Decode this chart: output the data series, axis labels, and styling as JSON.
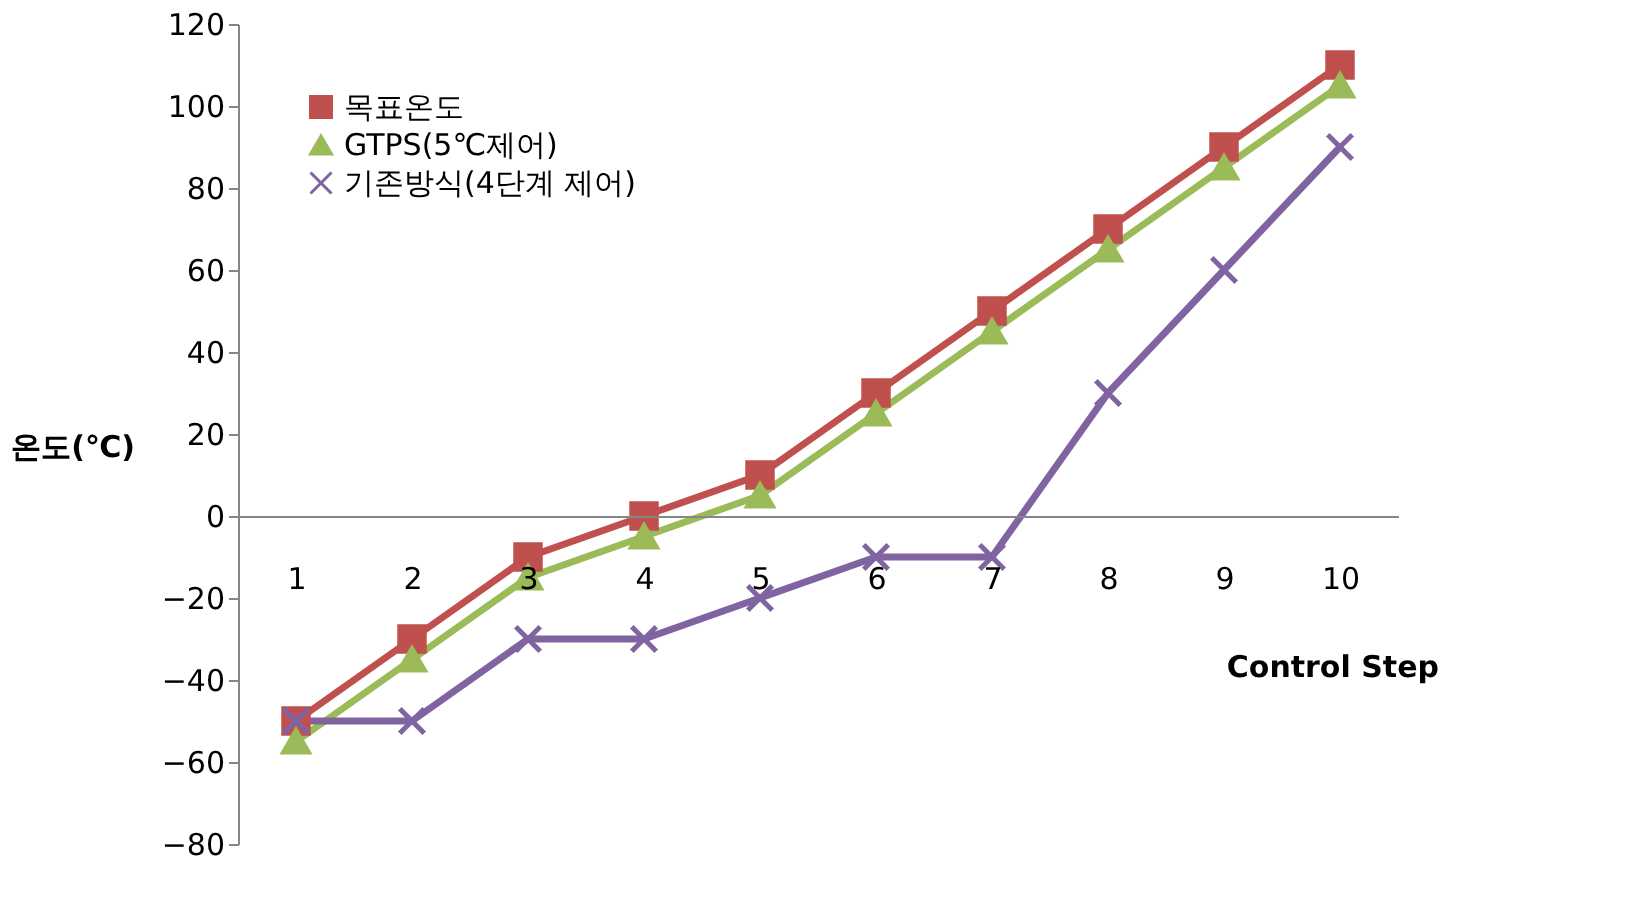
{
  "chart_data": {
    "type": "line",
    "xlabel": "Control Step",
    "ylabel": "온도(℃)",
    "categories": [
      "1",
      "2",
      "3",
      "4",
      "5",
      "6",
      "7",
      "8",
      "9",
      "10"
    ],
    "series": [
      {
        "name": "목표온도",
        "color": "#c0504d",
        "marker": "square",
        "values": [
          -50,
          -30,
          -10,
          0,
          10,
          30,
          50,
          70,
          90,
          110
        ]
      },
      {
        "name": "GTPS(5℃제어)",
        "color": "#9bbb59",
        "marker": "triangle",
        "values": [
          -55,
          -35,
          -15,
          -5,
          5,
          25,
          45,
          65,
          85,
          105
        ]
      },
      {
        "name": "기존방식(4단계 제어)",
        "color": "#8064a2",
        "marker": "cross",
        "values": [
          -50,
          -50,
          -30,
          -30,
          -20,
          -10,
          -10,
          30,
          60,
          90
        ]
      }
    ],
    "ylim": [
      -80,
      120
    ],
    "yticks": [
      -80,
      -60,
      -40,
      -20,
      0,
      20,
      40,
      60,
      80,
      100,
      120
    ],
    "grid": false,
    "legend": "top left",
    "line_style": "solid"
  }
}
